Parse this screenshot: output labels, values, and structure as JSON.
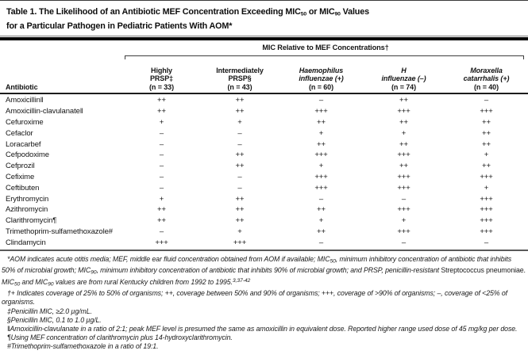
{
  "table": {
    "title": {
      "t1": "Table 1. The Likelihood of an Antibiotic MEF Concentration Exceeding MIC",
      "sub50": "50",
      "t2": " or MIC",
      "sub90": "90",
      "t3": " Values",
      "line2": "for a Particular Pathogen in Pediatric Patients With AOM*"
    },
    "spanner": "MIC Relative to MEF Concentrations†",
    "columns": {
      "antibiotic": "Antibiotic",
      "c2": {
        "l1": "Highly",
        "l2": "PRSP‡",
        "n": "(n = 33)"
      },
      "c3": {
        "l1": "Intermediately",
        "l2": "PRSP§",
        "n": "(n = 43)"
      },
      "c4": {
        "l1": "Haemophilus",
        "l2": "influenzae (+)",
        "n": "(n = 60)"
      },
      "c5": {
        "l1": "H",
        "l2": "influenzae (–)",
        "n": "(n = 74)"
      },
      "c6": {
        "l1": "Moraxella",
        "l2": "catarrhalis (+)",
        "n": "(n = 40)"
      }
    },
    "rows": [
      {
        "name": "Amoxicillin‖",
        "v": [
          "++",
          "++",
          "–",
          "++",
          "–"
        ]
      },
      {
        "name": "Amoxicillin-clavulanate‖",
        "v": [
          "++",
          "++",
          "+++",
          "+++",
          "+++"
        ]
      },
      {
        "name": "Cefuroxime",
        "v": [
          "+",
          "+",
          "++",
          "++",
          "++"
        ]
      },
      {
        "name": "Cefaclor",
        "v": [
          "–",
          "–",
          "+",
          "+",
          "++"
        ]
      },
      {
        "name": "Loracarbef",
        "v": [
          "–",
          "–",
          "++",
          "++",
          "++"
        ]
      },
      {
        "name": "Cefpodoxime",
        "v": [
          "–",
          "++",
          "+++",
          "+++",
          "+"
        ]
      },
      {
        "name": "Cefprozil",
        "v": [
          "–",
          "++",
          "+",
          "++",
          "++"
        ]
      },
      {
        "name": "Cefixime",
        "v": [
          "–",
          "–",
          "+++",
          "+++",
          "+++"
        ]
      },
      {
        "name": "Ceftibuten",
        "v": [
          "–",
          "–",
          "+++",
          "+++",
          "+"
        ]
      },
      {
        "name": "Erythromycin",
        "v": [
          "+",
          "++",
          "–",
          "–",
          "+++"
        ]
      },
      {
        "name": "Azithromycin",
        "v": [
          "++",
          "++",
          "++",
          "+++",
          "+++"
        ]
      },
      {
        "name": "Clarithromycin¶",
        "v": [
          "++",
          "++",
          "+",
          "+",
          "+++"
        ]
      },
      {
        "name": "Trimethoprim-sulfamethoxazole#",
        "v": [
          "–",
          "+",
          "++",
          "+++",
          "+++"
        ]
      },
      {
        "name": "Clindamycin",
        "v": [
          "+++",
          "+++",
          "–",
          "–",
          "–"
        ]
      }
    ]
  },
  "footnotes": {
    "star": {
      "s1": "*AOM indicates acute otitis media; MEF, middle ear fluid concentration obtained from AOM if available; MIC",
      "sub1": "50",
      "s2": ", minimum inhibitory concentration of antibiotic that inhibits 50% of microbial growth; MIC",
      "sub2": "90",
      "s3": ", minimum inhibitory concentration of antibiotic that inhibits 90% of microbial growth; and PRSP, penicillin-resistant ",
      "roman": "Streptococcus pneumoniae.",
      "s4": " MIC",
      "sub3": "50",
      "s5": " and MIC",
      "sub4": "90",
      "s6": " values are from rural Kentucky children from 1992 to 1995.",
      "sup": "3,37-42"
    },
    "dagger": "†+ Indicates coverage of 25% to 50% of organisms; ++, coverage between 50% and 90% of organisms; +++, coverage of >90% of organisms; –, coverage of <25% of organisms.",
    "ddagger": "‡Penicillin MIC, ≥2.0 µg/mL.",
    "sect": "§Penicillin MIC, 0.1 to 1.0 µg/L.",
    "pipes": "‖Amoxicillin-clavulanate in a ratio of 2:1; peak MEF level is presumed the same as amoxicillin in equivalent dose. Reported higher range used dose of 45 mg/kg per dose.",
    "para": "¶Using MEF concentration of clarithromycin plus 14-hydroxyclarithromycin.",
    "hash": "#Trimethoprim-sulfamethoxazole in a ratio of 19:1."
  }
}
